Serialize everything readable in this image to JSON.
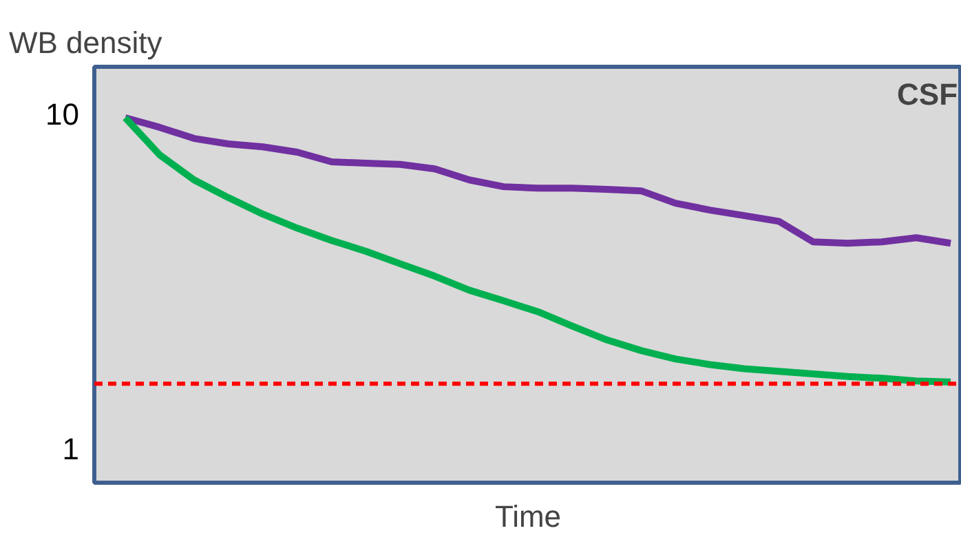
{
  "chart_data": {
    "type": "line",
    "ylabel": "WB density",
    "xlabel": "Time",
    "categories": [
      null,
      null,
      null,
      null,
      null,
      null,
      null,
      null,
      null,
      null,
      null,
      null,
      null,
      null,
      null,
      null,
      null,
      null,
      null,
      null,
      null,
      null,
      null,
      null,
      null
    ],
    "series": [
      {
        "color": "#7030a0",
        "values": [
          9.72,
          9.1,
          8.43,
          8.12,
          7.96,
          7.67,
          7.18,
          7.11,
          7.05,
          6.84,
          6.34,
          6.05,
          5.99,
          5.99,
          5.94,
          5.88,
          5.4,
          5.15,
          4.96,
          4.77,
          4.14,
          4.1,
          4.14,
          4.26,
          4.1
        ]
      },
      {
        "color": "#00b050",
        "values": [
          9.72,
          7.53,
          6.34,
          5.61,
          5.01,
          4.55,
          4.18,
          3.88,
          3.56,
          3.27,
          2.97,
          2.76,
          2.56,
          2.32,
          2.11,
          1.96,
          1.85,
          1.78,
          1.73,
          1.7,
          1.67,
          1.64,
          1.62,
          1.59,
          1.58
        ]
      }
    ],
    "log": true,
    "ylim": [
      0.79,
      13.8
    ],
    "yticks": [
      1,
      10
    ],
    "tick_labels": "y",
    "grid": false,
    "line_style": "solid",
    "marker": "none",
    "ref_lines": [
      {
        "axis": "y",
        "value": 1.56,
        "color": "#ff0000",
        "line_style": "dashed"
      }
    ],
    "annotations": [
      "CSF"
    ]
  }
}
